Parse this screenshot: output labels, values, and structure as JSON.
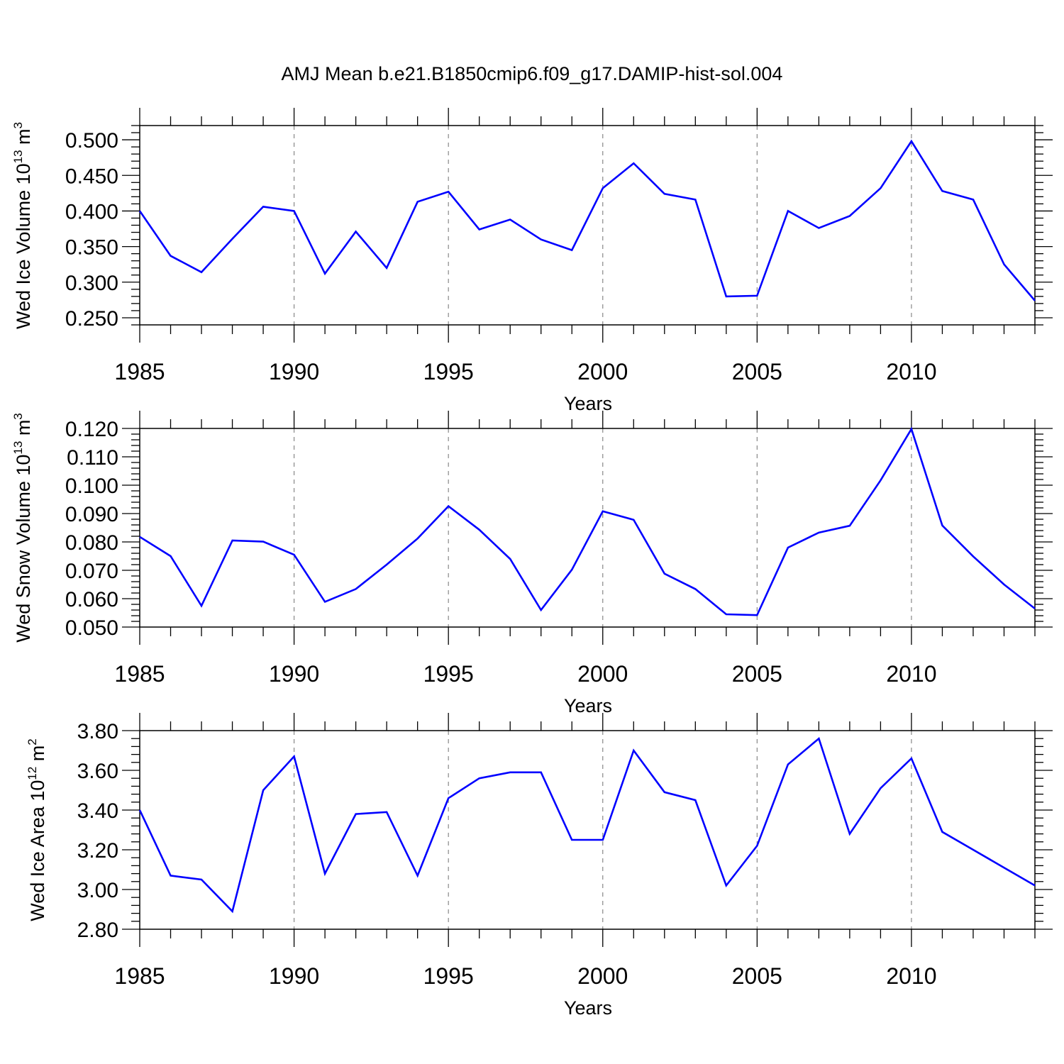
{
  "figure": {
    "title": "AMJ Mean b.e21.B1850cmip6.f09_g17.DAMIP-hist-sol.004"
  },
  "colors": {
    "line": "#0000ff",
    "axis": "#000000",
    "grid": "#888888"
  },
  "chart_data": [
    {
      "type": "line",
      "title": "AMJ Mean b.e21.B1850cmip6.f09_g17.DAMIP-hist-sol.004",
      "ylabel": "Wed Ice Volume 10",
      "ylabel_exp": "13",
      "ylabel_unit": " m",
      "ylabel_unit_exp": "3",
      "xlabel": "Years",
      "xlim": [
        1985,
        2014
      ],
      "ylim": [
        0.24,
        0.52
      ],
      "xticks": [
        1985,
        1990,
        1995,
        2000,
        2005,
        2010
      ],
      "yticks": [
        0.25,
        0.3,
        0.35,
        0.4,
        0.45,
        0.5
      ],
      "ytick_labels": [
        "0.250",
        "0.300",
        "0.350",
        "0.400",
        "0.450",
        "0.500"
      ],
      "grid": "vertical dashed at major x ticks",
      "x": [
        1985,
        1986,
        1987,
        1988,
        1989,
        1990,
        1991,
        1992,
        1993,
        1994,
        1995,
        1996,
        1997,
        1998,
        1999,
        2000,
        2001,
        2002,
        2003,
        2004,
        2005,
        2006,
        2007,
        2008,
        2009,
        2010,
        2011,
        2012,
        2013,
        2014
      ],
      "series": [
        {
          "name": "Wed Ice Volume",
          "values": [
            0.4,
            0.337,
            0.314,
            0.361,
            0.406,
            0.4,
            0.312,
            0.371,
            0.32,
            0.413,
            0.427,
            0.374,
            0.388,
            0.36,
            0.345,
            0.432,
            0.467,
            0.424,
            0.416,
            0.28,
            0.281,
            0.4,
            0.376,
            0.393,
            0.432,
            0.498,
            0.428,
            0.416,
            0.325,
            0.274
          ]
        }
      ]
    },
    {
      "type": "line",
      "ylabel": "Wed Snow Volume 10",
      "ylabel_exp": "13",
      "ylabel_unit": " m",
      "ylabel_unit_exp": "3",
      "xlabel": "Years",
      "xlim": [
        1985,
        2014
      ],
      "ylim": [
        0.05,
        0.12
      ],
      "xticks": [
        1985,
        1990,
        1995,
        2000,
        2005,
        2010
      ],
      "yticks": [
        0.05,
        0.06,
        0.07,
        0.08,
        0.09,
        0.1,
        0.11,
        0.12
      ],
      "ytick_labels": [
        "0.050",
        "0.060",
        "0.070",
        "0.080",
        "0.090",
        "0.100",
        "0.110",
        "0.120"
      ],
      "grid": "vertical dashed at major x ticks",
      "x": [
        1985,
        1986,
        1987,
        1988,
        1989,
        1990,
        1991,
        1992,
        1993,
        1994,
        1995,
        1996,
        1997,
        1998,
        1999,
        2000,
        2001,
        2002,
        2003,
        2004,
        2005,
        2006,
        2007,
        2008,
        2009,
        2010,
        2011,
        2012,
        2013,
        2014
      ],
      "series": [
        {
          "name": "Wed Snow Volume",
          "values": [
            0.0818,
            0.075,
            0.0575,
            0.0805,
            0.0801,
            0.0755,
            0.0589,
            0.0634,
            0.072,
            0.0812,
            0.0926,
            0.0843,
            0.074,
            0.056,
            0.0702,
            0.0908,
            0.0878,
            0.0688,
            0.0634,
            0.0545,
            0.0542,
            0.078,
            0.0833,
            0.0857,
            0.1017,
            0.1198,
            0.0858,
            0.0749,
            0.065,
            0.0565
          ]
        }
      ]
    },
    {
      "type": "line",
      "ylabel": "Wed Ice Area 10",
      "ylabel_exp": "12",
      "ylabel_unit": " m",
      "ylabel_unit_exp": "2",
      "xlabel": "Years",
      "xlim": [
        1985,
        2014
      ],
      "ylim": [
        2.8,
        3.8
      ],
      "xticks": [
        1985,
        1990,
        1995,
        2000,
        2005,
        2010
      ],
      "yticks": [
        2.8,
        3.0,
        3.2,
        3.4,
        3.6,
        3.8
      ],
      "ytick_labels": [
        "2.80",
        "3.00",
        "3.20",
        "3.40",
        "3.60",
        "3.80"
      ],
      "grid": "vertical dashed at major x ticks",
      "x": [
        1985,
        1986,
        1987,
        1988,
        1989,
        1990,
        1991,
        1992,
        1993,
        1994,
        1995,
        1996,
        1997,
        1998,
        1999,
        2000,
        2001,
        2002,
        2003,
        2004,
        2005,
        2006,
        2007,
        2008,
        2009,
        2010,
        2011,
        2012,
        2013,
        2014
      ],
      "series": [
        {
          "name": "Wed Ice Area",
          "values": [
            3.4,
            3.07,
            3.05,
            2.89,
            3.5,
            3.67,
            3.08,
            3.38,
            3.39,
            3.07,
            3.46,
            3.56,
            3.59,
            3.59,
            3.25,
            3.25,
            3.7,
            3.49,
            3.45,
            3.02,
            3.22,
            3.63,
            3.76,
            3.28,
            3.51,
            3.66,
            3.29,
            3.2,
            3.11,
            3.02
          ]
        }
      ]
    }
  ]
}
